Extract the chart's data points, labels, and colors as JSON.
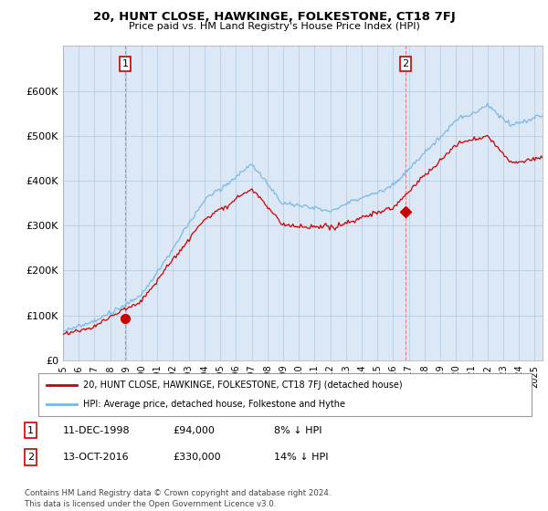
{
  "title": "20, HUNT CLOSE, HAWKINGE, FOLKESTONE, CT18 7FJ",
  "subtitle": "Price paid vs. HM Land Registry's House Price Index (HPI)",
  "hpi_color": "#7ab8e8",
  "price_color": "#cc0000",
  "plot_bg_color": "#dce8f5",
  "background_color": "#ffffff",
  "grid_color": "#b0c8e0",
  "ylim": [
    0,
    700000
  ],
  "yticks": [
    0,
    100000,
    200000,
    300000,
    400000,
    500000,
    600000
  ],
  "ytick_labels": [
    "£0",
    "£100K",
    "£200K",
    "£300K",
    "£400K",
    "£500K",
    "£600K"
  ],
  "sale1_date_num": 1998.95,
  "sale1_price": 94000,
  "sale2_date_num": 2016.79,
  "sale2_price": 330000,
  "legend_line1": "20, HUNT CLOSE, HAWKINGE, FOLKESTONE, CT18 7FJ (detached house)",
  "legend_line2": "HPI: Average price, detached house, Folkestone and Hythe",
  "table_row1": [
    "1",
    "11-DEC-1998",
    "£94,000",
    "8% ↓ HPI"
  ],
  "table_row2": [
    "2",
    "13-OCT-2016",
    "£330,000",
    "14% ↓ HPI"
  ],
  "footer": "Contains HM Land Registry data © Crown copyright and database right 2024.\nThis data is licensed under the Open Government Licence v3.0.",
  "xmin": 1995.0,
  "xmax": 2025.5
}
